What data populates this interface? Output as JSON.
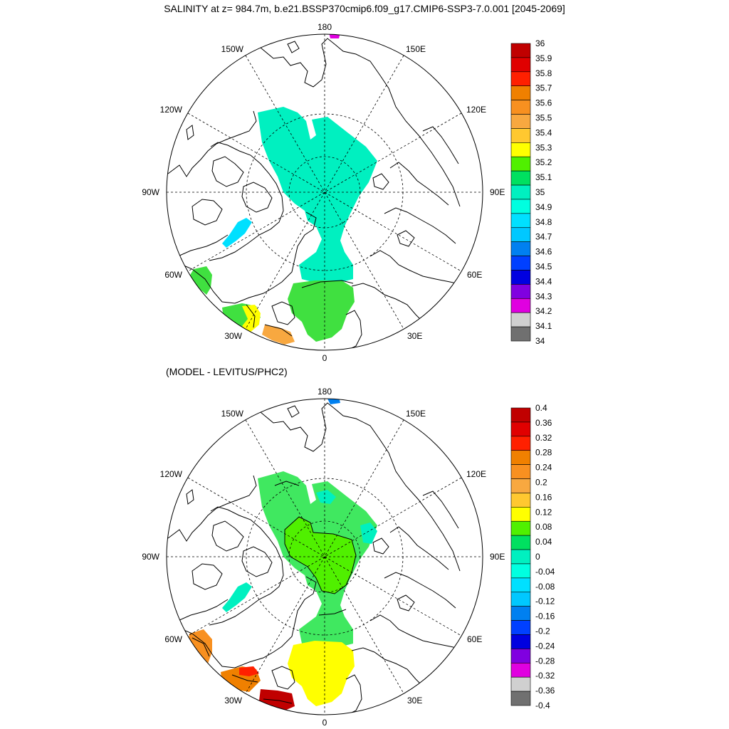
{
  "title": "SALINITY at z= 984.7m, b.e21.BSSP370cmip6.f09_g17.CMIP6-SSP3-7.0.001 [2045-2069]",
  "subtitle": "(MODEL - LEVITUS/PHC2)",
  "longitude_labels": [
    "180",
    "150E",
    "120E",
    "90E",
    "60E",
    "30E",
    "0",
    "30W",
    "60W",
    "90W",
    "120W",
    "150W"
  ],
  "panels": [
    {
      "name": "salinity",
      "colorbar": {
        "labels": [
          "36",
          "35.9",
          "35.8",
          "35.7",
          "35.6",
          "35.5",
          "35.4",
          "35.3",
          "35.2",
          "35.1",
          "35",
          "34.9",
          "34.8",
          "34.7",
          "34.6",
          "34.5",
          "34.4",
          "34.3",
          "34.2",
          "34.1",
          "34"
        ],
        "colors": [
          "#c00000",
          "#e00000",
          "#ff2000",
          "#f08000",
          "#f89020",
          "#f8a840",
          "#ffc830",
          "#ffff00",
          "#50f000",
          "#00e060",
          "#00f0c0",
          "#00ffe0",
          "#00e0ff",
          "#00c8ff",
          "#0080f0",
          "#0040ff",
          "#0000e0",
          "#8000e0",
          "#e000e0",
          "#d0d0d0",
          "#707070"
        ]
      }
    },
    {
      "name": "difference",
      "colorbar": {
        "labels": [
          "0.4",
          "0.36",
          "0.32",
          "0.28",
          "0.24",
          "0.2",
          "0.16",
          "0.12",
          "0.08",
          "0.04",
          "0",
          "-0.04",
          "-0.08",
          "-0.12",
          "-0.16",
          "-0.2",
          "-0.24",
          "-0.28",
          "-0.32",
          "-0.36",
          "-0.4"
        ],
        "colors": [
          "#c00000",
          "#e00000",
          "#ff2000",
          "#f08000",
          "#f89020",
          "#f8a840",
          "#ffc830",
          "#ffff00",
          "#50f000",
          "#00e060",
          "#00f0c0",
          "#00ffe0",
          "#00e0ff",
          "#00c8ff",
          "#0080f0",
          "#0040ff",
          "#0000e0",
          "#8000e0",
          "#e000e0",
          "#d0d0d0",
          "#707070"
        ]
      }
    }
  ],
  "colors": {
    "salinity_arctic": "#00f0c0",
    "salinity_nordic": "#40e040",
    "salinity_atlantic_yellow": "#ffff00",
    "salinity_atlantic_orange": "#f8a840",
    "diff_arctic": "#40e860",
    "diff_arctic_core": "#50f000",
    "diff_nordic": "#ffff00",
    "diff_atlantic_orange": "#f08000",
    "diff_atlantic_red": "#c00000"
  }
}
